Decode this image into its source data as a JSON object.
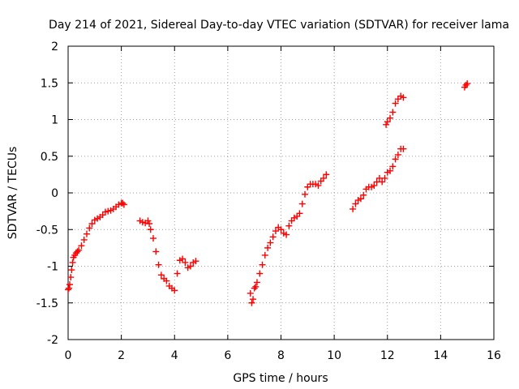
{
  "chart_data": {
    "type": "scatter",
    "title": "Day 214 of 2021, Sidereal Day-to-day VTEC variation (SDTVAR) for receiver lama",
    "xlabel": "GPS time / hours",
    "ylabel": "SDTVAR / TECUs",
    "xlim": [
      0,
      16
    ],
    "ylim": [
      -2,
      2
    ],
    "xticks": [
      0,
      2,
      4,
      6,
      8,
      10,
      12,
      14,
      16
    ],
    "yticks": [
      -2,
      -1.5,
      -1,
      -0.5,
      0,
      0.5,
      1,
      1.5,
      2
    ],
    "grid": true,
    "marker": "+",
    "color": "#ff0000",
    "series": [
      {
        "name": "SDTVAR",
        "x": [
          0.0,
          0.03,
          0.06,
          0.1,
          0.13,
          0.17,
          0.2,
          0.25,
          0.3,
          0.35,
          0.4,
          0.5,
          0.6,
          0.7,
          0.8,
          0.9,
          1.0,
          1.1,
          1.2,
          1.3,
          1.4,
          1.5,
          1.6,
          1.7,
          1.8,
          1.9,
          2.0,
          2.05,
          2.1,
          2.7,
          2.8,
          2.9,
          3.0,
          3.05,
          3.1,
          3.2,
          3.3,
          3.4,
          3.5,
          3.6,
          3.7,
          3.8,
          3.9,
          4.0,
          4.1,
          4.2,
          4.3,
          4.4,
          4.5,
          4.6,
          4.7,
          4.8,
          6.85,
          6.9,
          6.95,
          7.0,
          7.05,
          7.1,
          7.2,
          7.3,
          7.4,
          7.5,
          7.6,
          7.7,
          7.8,
          7.9,
          8.0,
          8.1,
          8.2,
          8.3,
          8.4,
          8.5,
          8.6,
          8.7,
          8.8,
          8.9,
          9.0,
          9.1,
          9.2,
          9.3,
          9.4,
          9.5,
          9.6,
          9.7,
          10.7,
          10.8,
          10.9,
          11.0,
          11.1,
          11.2,
          11.3,
          11.4,
          11.5,
          11.6,
          11.7,
          11.8,
          11.9,
          12.0,
          12.1,
          12.2,
          12.3,
          12.4,
          12.5,
          12.6,
          11.95,
          12.0,
          12.1,
          12.2,
          12.3,
          12.4,
          12.5,
          12.6,
          14.9,
          14.95,
          15.0
        ],
        "y": [
          -1.32,
          -1.3,
          -1.25,
          -1.15,
          -1.05,
          -0.95,
          -0.88,
          -0.85,
          -0.82,
          -0.8,
          -0.78,
          -0.72,
          -0.64,
          -0.56,
          -0.48,
          -0.42,
          -0.37,
          -0.35,
          -0.33,
          -0.3,
          -0.26,
          -0.25,
          -0.24,
          -0.22,
          -0.19,
          -0.16,
          -0.14,
          -0.14,
          -0.16,
          -0.38,
          -0.4,
          -0.41,
          -0.38,
          -0.42,
          -0.5,
          -0.62,
          -0.8,
          -0.98,
          -1.12,
          -1.17,
          -1.2,
          -1.27,
          -1.3,
          -1.33,
          -1.1,
          -0.92,
          -0.9,
          -0.95,
          -1.02,
          -1.0,
          -0.95,
          -0.93,
          -1.37,
          -1.5,
          -1.45,
          -1.3,
          -1.28,
          -1.22,
          -1.1,
          -0.98,
          -0.85,
          -0.75,
          -0.68,
          -0.6,
          -0.52,
          -0.47,
          -0.5,
          -0.55,
          -0.57,
          -0.45,
          -0.38,
          -0.34,
          -0.32,
          -0.28,
          -0.15,
          -0.02,
          0.08,
          0.12,
          0.12,
          0.12,
          0.1,
          0.16,
          0.2,
          0.25,
          -0.22,
          -0.15,
          -0.1,
          -0.08,
          -0.03,
          0.05,
          0.08,
          0.08,
          0.1,
          0.15,
          0.2,
          0.15,
          0.2,
          0.28,
          0.3,
          0.36,
          0.46,
          0.52,
          0.6,
          0.6,
          0.93,
          0.97,
          1.02,
          1.1,
          1.22,
          1.28,
          1.32,
          1.3,
          1.44,
          1.47,
          1.49
        ]
      }
    ]
  }
}
